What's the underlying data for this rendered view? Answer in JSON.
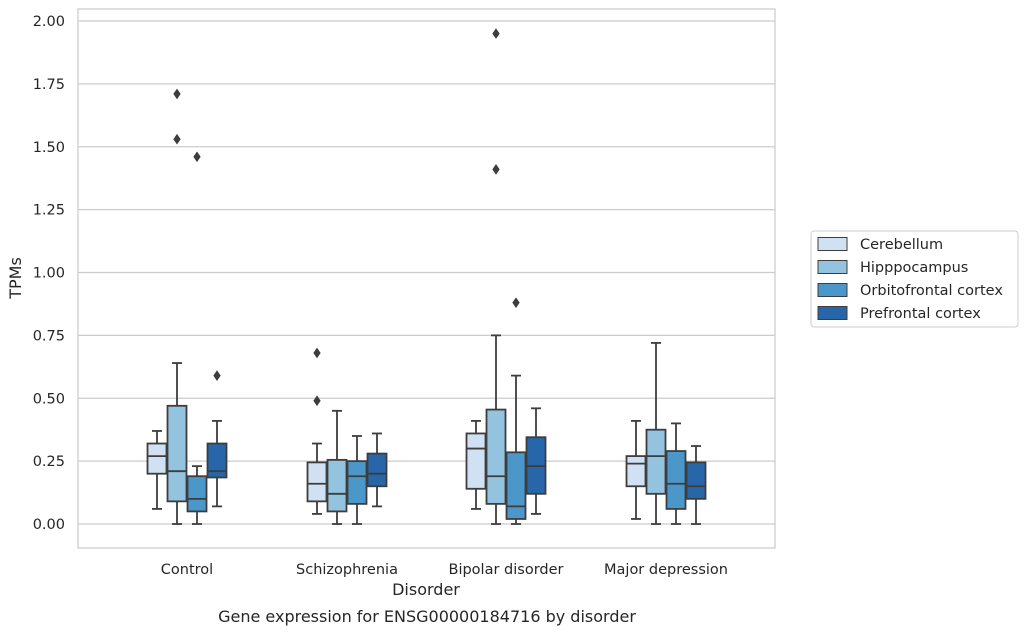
{
  "caption": "Gene expression for ENSG00000184716 by disorder",
  "chart_data": {
    "type": "box",
    "title": "",
    "xlabel": "Disorder",
    "ylabel": "TPMs",
    "ylim": [
      -0.095,
      2.05
    ],
    "yticks": [
      0.0,
      0.25,
      0.5,
      0.75,
      1.0,
      1.25,
      1.5,
      1.75,
      2.0
    ],
    "ytick_labels": [
      "0.00",
      "0.25",
      "0.50",
      "0.75",
      "1.00",
      "1.25",
      "1.50",
      "1.75",
      "2.00"
    ],
    "grid": "horizontal",
    "legend_placement": "right",
    "categories": [
      "Control",
      "Schizophrenia",
      "Bipolar disorder",
      "Major depression"
    ],
    "series": [
      {
        "name": "Cerebellum",
        "color": "#cfe1f2",
        "boxes": [
          {
            "whisker_low": 0.06,
            "q1": 0.2,
            "median": 0.27,
            "q3": 0.32,
            "whisker_high": 0.37,
            "outliers": []
          },
          {
            "whisker_low": 0.04,
            "q1": 0.09,
            "median": 0.16,
            "q3": 0.245,
            "whisker_high": 0.32,
            "outliers": [
              0.68,
              0.49
            ]
          },
          {
            "whisker_low": 0.06,
            "q1": 0.14,
            "median": 0.3,
            "q3": 0.36,
            "whisker_high": 0.41,
            "outliers": []
          },
          {
            "whisker_low": 0.02,
            "q1": 0.15,
            "median": 0.24,
            "q3": 0.27,
            "whisker_high": 0.41,
            "outliers": []
          }
        ]
      },
      {
        "name": "Hipppocampus",
        "color": "#93c3df",
        "boxes": [
          {
            "whisker_low": 0.0,
            "q1": 0.09,
            "median": 0.21,
            "q3": 0.47,
            "whisker_high": 0.64,
            "outliers": [
              1.71,
              1.53
            ]
          },
          {
            "whisker_low": 0.0,
            "q1": 0.05,
            "median": 0.12,
            "q3": 0.255,
            "whisker_high": 0.45,
            "outliers": []
          },
          {
            "whisker_low": 0.0,
            "q1": 0.08,
            "median": 0.19,
            "q3": 0.455,
            "whisker_high": 0.75,
            "outliers": [
              1.95,
              1.41
            ]
          },
          {
            "whisker_low": 0.0,
            "q1": 0.12,
            "median": 0.27,
            "q3": 0.375,
            "whisker_high": 0.72,
            "outliers": []
          }
        ]
      },
      {
        "name": "Orbitofrontal cortex",
        "color": "#4b97c9",
        "boxes": [
          {
            "whisker_low": 0.0,
            "q1": 0.05,
            "median": 0.1,
            "q3": 0.19,
            "whisker_high": 0.23,
            "outliers": [
              1.46
            ]
          },
          {
            "whisker_low": 0.0,
            "q1": 0.08,
            "median": 0.19,
            "q3": 0.25,
            "whisker_high": 0.35,
            "outliers": []
          },
          {
            "whisker_low": 0.0,
            "q1": 0.02,
            "median": 0.07,
            "q3": 0.285,
            "whisker_high": 0.59,
            "outliers": [
              0.88
            ]
          },
          {
            "whisker_low": 0.0,
            "q1": 0.06,
            "median": 0.16,
            "q3": 0.29,
            "whisker_high": 0.4,
            "outliers": []
          }
        ]
      },
      {
        "name": "Prefrontal cortex",
        "color": "#2767a9",
        "boxes": [
          {
            "whisker_low": 0.07,
            "q1": 0.185,
            "median": 0.21,
            "q3": 0.32,
            "whisker_high": 0.41,
            "outliers": [
              0.59
            ]
          },
          {
            "whisker_low": 0.07,
            "q1": 0.15,
            "median": 0.2,
            "q3": 0.28,
            "whisker_high": 0.36,
            "outliers": []
          },
          {
            "whisker_low": 0.04,
            "q1": 0.12,
            "median": 0.23,
            "q3": 0.345,
            "whisker_high": 0.46,
            "outliers": []
          },
          {
            "whisker_low": 0.0,
            "q1": 0.1,
            "median": 0.15,
            "q3": 0.245,
            "whisker_high": 0.31,
            "outliers": []
          }
        ]
      }
    ]
  }
}
